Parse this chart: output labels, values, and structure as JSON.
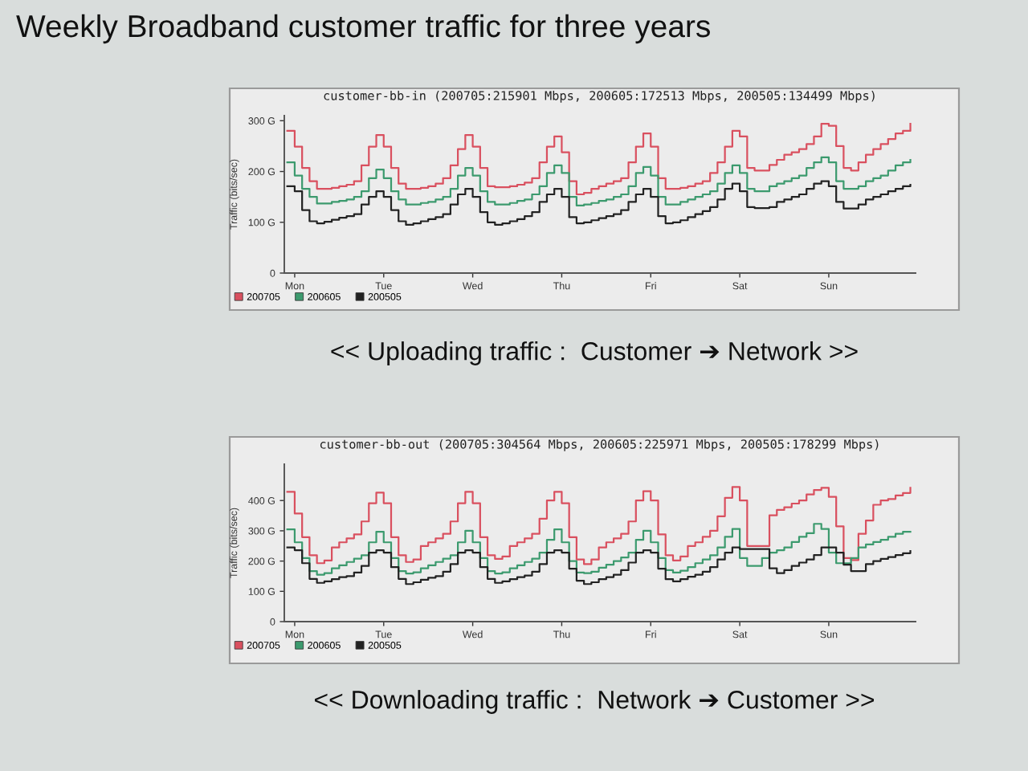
{
  "chart_data": [
    {
      "type": "step",
      "title": "Weekly Broadband customer traffic for three years",
      "subtitle": "customer-bb-in (200705:215901 Mbps, 200605:172513 Mbps, 200505:134499 Mbps)",
      "ylabel": "Traffic (bits/sec)",
      "categories": [
        null,
        "Mon",
        null,
        null,
        null,
        null,
        null,
        null,
        null,
        null,
        null,
        null,
        null,
        "Tue",
        null,
        null,
        null,
        null,
        null,
        null,
        null,
        null,
        null,
        null,
        null,
        "Wed",
        null,
        null,
        null,
        null,
        null,
        null,
        null,
        null,
        null,
        null,
        null,
        "Thu",
        null,
        null,
        null,
        null,
        null,
        null,
        null,
        null,
        null,
        null,
        null,
        "Fri",
        null,
        null,
        null,
        null,
        null,
        null,
        null,
        null,
        null,
        null,
        null,
        "Sat",
        null,
        null,
        null,
        null,
        null,
        null,
        null,
        null,
        null,
        null,
        null,
        "Sun",
        null,
        null,
        null,
        null,
        null,
        null,
        null,
        null,
        null,
        null,
        null
      ],
      "ylim": [
        0,
        310
      ],
      "yticks": [
        0,
        {
          "value": 100,
          "label": "100 G"
        },
        {
          "value": 200,
          "label": "200 G"
        },
        {
          "value": 300,
          "label": "300 G"
        }
      ],
      "legend": "bottom left",
      "series": [
        {
          "name": "200705",
          "color": "#d9505f",
          "values": [
            280,
            249,
            207,
            181,
            166,
            166,
            168,
            171,
            174,
            181,
            212,
            249,
            272,
            249,
            207,
            176,
            166,
            166,
            168,
            171,
            176,
            187,
            212,
            244,
            272,
            249,
            207,
            171,
            169,
            169,
            171,
            174,
            178,
            187,
            218,
            249,
            269,
            238,
            181,
            155,
            158,
            166,
            171,
            176,
            181,
            187,
            218,
            249,
            275,
            249,
            187,
            166,
            166,
            168,
            171,
            176,
            181,
            197,
            218,
            249,
            280,
            269,
            207,
            202,
            202,
            213,
            223,
            233,
            238,
            244,
            254,
            269,
            294,
            290,
            250,
            207,
            202,
            218,
            233,
            244,
            254,
            264,
            275,
            280,
            294
          ]
        },
        {
          "name": "200605",
          "color": "#3c9a6e",
          "values": [
            218,
            192,
            166,
            150,
            137,
            137,
            140,
            142,
            145,
            150,
            161,
            187,
            204,
            187,
            161,
            145,
            135,
            135,
            138,
            140,
            145,
            150,
            166,
            192,
            207,
            192,
            161,
            140,
            135,
            135,
            138,
            142,
            145,
            155,
            171,
            197,
            212,
            197,
            150,
            133,
            135,
            138,
            142,
            145,
            150,
            155,
            171,
            197,
            209,
            192,
            150,
            135,
            135,
            140,
            145,
            150,
            155,
            161,
            176,
            197,
            212,
            197,
            166,
            161,
            161,
            171,
            176,
            181,
            187,
            192,
            207,
            218,
            228,
            218,
            181,
            166,
            166,
            171,
            181,
            187,
            192,
            202,
            212,
            218,
            223
          ]
        },
        {
          "name": "200505",
          "color": "#222222",
          "values": [
            171,
            161,
            124,
            102,
            98,
            101,
            105,
            109,
            112,
            116,
            135,
            150,
            161,
            150,
            124,
            102,
            95,
            98,
            102,
            106,
            110,
            116,
            135,
            155,
            166,
            150,
            120,
            100,
            95,
            98,
            102,
            106,
            112,
            120,
            140,
            155,
            166,
            150,
            110,
            98,
            100,
            104,
            108,
            112,
            116,
            124,
            140,
            155,
            166,
            150,
            112,
            98,
            100,
            104,
            110,
            116,
            122,
            130,
            145,
            166,
            176,
            161,
            130,
            128,
            128,
            130,
            140,
            145,
            150,
            155,
            166,
            176,
            181,
            171,
            140,
            127,
            127,
            135,
            145,
            150,
            155,
            161,
            166,
            171,
            174
          ]
        }
      ],
      "annotations": [
        "<< Uploading traffic :  Customer ➔ Network >>"
      ]
    },
    {
      "type": "step",
      "subtitle": "customer-bb-out (200705:304564 Mbps, 200605:225971 Mbps, 200505:178299 Mbps)",
      "ylabel": "Traffic (bits/sec)",
      "categories": [
        null,
        "Mon",
        null,
        null,
        null,
        null,
        null,
        null,
        null,
        null,
        null,
        null,
        null,
        "Tue",
        null,
        null,
        null,
        null,
        null,
        null,
        null,
        null,
        null,
        null,
        null,
        "Wed",
        null,
        null,
        null,
        null,
        null,
        null,
        null,
        null,
        null,
        null,
        null,
        "Thu",
        null,
        null,
        null,
        null,
        null,
        null,
        null,
        null,
        null,
        null,
        null,
        "Fri",
        null,
        null,
        null,
        null,
        null,
        null,
        null,
        null,
        null,
        null,
        null,
        "Sat",
        null,
        null,
        null,
        null,
        null,
        null,
        null,
        null,
        null,
        null,
        null,
        "Sun",
        null,
        null,
        null,
        null,
        null,
        null,
        null,
        null,
        null,
        null,
        null
      ],
      "ylim": [
        0,
        520
      ],
      "yticks": [
        0,
        {
          "value": 100,
          "label": "100 G"
        },
        {
          "value": 200,
          "label": "200 G"
        },
        {
          "value": 300,
          "label": "300 G"
        },
        {
          "value": 400,
          "label": "400 G"
        }
      ],
      "legend": "bottom left",
      "series": [
        {
          "name": "200705",
          "color": "#d9505f",
          "values": [
            429,
            357,
            279,
            219,
            193,
            202,
            245,
            262,
            275,
            288,
            331,
            391,
            426,
            391,
            279,
            219,
            197,
            205,
            250,
            262,
            275,
            290,
            331,
            391,
            429,
            391,
            279,
            219,
            207,
            215,
            250,
            262,
            275,
            290,
            340,
            400,
            429,
            391,
            279,
            205,
            190,
            205,
            245,
            262,
            275,
            290,
            331,
            400,
            431,
            400,
            288,
            219,
            202,
            215,
            250,
            262,
            280,
            300,
            348,
            409,
            445,
            400,
            250,
            250,
            250,
            351,
            369,
            378,
            390,
            400,
            420,
            435,
            442,
            412,
            315,
            210,
            203,
            290,
            334,
            386,
            400,
            405,
            417,
            425,
            442
          ]
        },
        {
          "name": "200605",
          "color": "#3c9a6e",
          "values": [
            305,
            262,
            210,
            167,
            155,
            160,
            176,
            186,
            197,
            208,
            219,
            262,
            297,
            262,
            210,
            167,
            159,
            163,
            176,
            186,
            197,
            208,
            219,
            262,
            300,
            262,
            210,
            167,
            159,
            163,
            176,
            186,
            197,
            208,
            228,
            270,
            305,
            262,
            200,
            162,
            160,
            165,
            178,
            188,
            200,
            212,
            228,
            270,
            300,
            262,
            210,
            170,
            162,
            168,
            180,
            193,
            205,
            219,
            245,
            280,
            306,
            210,
            184,
            184,
            210,
            228,
            236,
            245,
            263,
            280,
            292,
            323,
            306,
            228,
            193,
            193,
            210,
            245,
            255,
            263,
            270,
            280,
            290,
            297,
            297
          ]
        },
        {
          "name": "200505",
          "color": "#222222",
          "values": [
            245,
            236,
            193,
            141,
            128,
            133,
            140,
            147,
            150,
            162,
            184,
            228,
            236,
            228,
            180,
            141,
            124,
            130,
            138,
            145,
            150,
            165,
            190,
            228,
            236,
            228,
            180,
            141,
            128,
            133,
            140,
            147,
            152,
            165,
            190,
            228,
            236,
            228,
            175,
            135,
            124,
            130,
            140,
            147,
            155,
            170,
            195,
            228,
            236,
            228,
            175,
            140,
            133,
            140,
            148,
            155,
            165,
            180,
            205,
            228,
            245,
            240,
            240,
            240,
            240,
            176,
            160,
            170,
            184,
            195,
            205,
            220,
            245,
            245,
            228,
            188,
            167,
            167,
            190,
            200,
            207,
            213,
            220,
            226,
            233
          ]
        }
      ],
      "annotations": [
        "<< Downloading traffic :  Network ➔ Customer >>"
      ]
    }
  ]
}
